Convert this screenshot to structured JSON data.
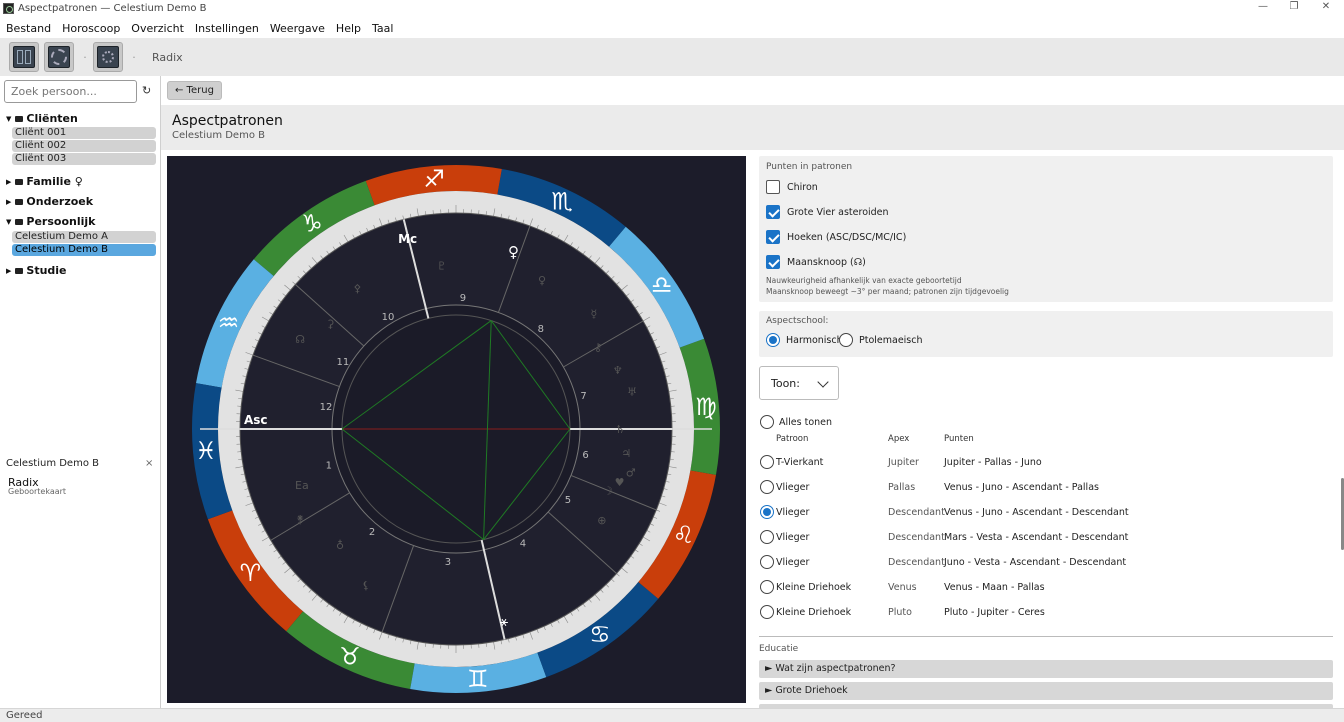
{
  "window": {
    "title": "Aspectpatronen — Celestium Demo B",
    "minimize": "—",
    "maximize": "❐",
    "close": "✕"
  },
  "menu": [
    "Bestand",
    "Horoscoop",
    "Overzicht",
    "Instellingen",
    "Weergave",
    "Help",
    "Taal"
  ],
  "toolbar": {
    "crumb": "Radix",
    "separator": "·"
  },
  "sidebar": {
    "search_placeholder": "Zoek persoon...",
    "refresh_icon": "↻",
    "groups": [
      {
        "label": "Cliënten",
        "items": [
          "Cliënt 001",
          "Cliënt 002",
          "Cliënt 003"
        ]
      },
      {
        "label": "Familie ♀",
        "items": []
      },
      {
        "label": "Onderzoek",
        "items": []
      },
      {
        "label": "Persoonlijk",
        "items": [
          "Celestium Demo A",
          "Celestium Demo B"
        ]
      },
      {
        "label": "Studie",
        "items": []
      }
    ],
    "selected_item": "Celestium Demo B"
  },
  "session": {
    "header": "Celestium Demo B",
    "close": "×",
    "item_title": "Radix",
    "item_subtitle": "Geboortekaart"
  },
  "main": {
    "back_label": "← Terug",
    "title": "Aspectpatronen",
    "subtitle": "Celestium Demo B"
  },
  "points_panel": {
    "title": "Punten in patronen",
    "options": [
      {
        "label": "Chiron",
        "checked": false
      },
      {
        "label": "Grote Vier asteroiden",
        "checked": true
      },
      {
        "label": "Hoeken (ASC/DSC/MC/IC)",
        "checked": true
      },
      {
        "label": "Maansknoop (☊)",
        "checked": true
      }
    ],
    "note1": "Nauwkeurigheid afhankelijk van exacte geboortetijd",
    "note2": "Maansknoop beweegt ~3° per maand; patronen zijn tijdgevoelig"
  },
  "aspect_school": {
    "title": "Aspectschool:",
    "options": [
      "Harmonisch",
      "Ptolemaeisch"
    ],
    "selected": "Harmonisch"
  },
  "toon": {
    "label": "Toon:"
  },
  "patterns": {
    "show_all_label": "Alles tonen",
    "headers": {
      "pattern": "Patroon",
      "apex": "Apex",
      "points": "Punten"
    },
    "rows": [
      {
        "pattern": "T-Vierkant",
        "apex": "Jupiter",
        "points": "Jupiter - Pallas - Juno",
        "selected": false
      },
      {
        "pattern": "Vlieger",
        "apex": "Pallas",
        "points": "Venus - Juno - Ascendant - Pallas",
        "selected": false
      },
      {
        "pattern": "Vlieger",
        "apex": "Descendant",
        "points": "Venus - Juno - Ascendant - Descendant",
        "selected": true
      },
      {
        "pattern": "Vlieger",
        "apex": "Descendant",
        "points": "Mars - Vesta - Ascendant - Descendant",
        "selected": false
      },
      {
        "pattern": "Vlieger",
        "apex": "Descendant",
        "points": "Juno - Vesta - Ascendant - Descendant",
        "selected": false
      },
      {
        "pattern": "Kleine Driehoek",
        "apex": "Venus",
        "points": "Venus - Maan - Pallas",
        "selected": false
      },
      {
        "pattern": "Kleine Driehoek",
        "apex": "Pluto",
        "points": "Pluto - Jupiter - Ceres",
        "selected": false
      }
    ]
  },
  "education": {
    "title": "Educatie",
    "items": [
      "► Wat zijn aspectpatronen?",
      "► Grote Driehoek"
    ]
  },
  "status": "Gereed",
  "chart": {
    "colors": {
      "background": "#1c1c2a",
      "fire": "#c93e0b",
      "earth": "#3a8a35",
      "air": "#5ab0e2",
      "water": "#0b4a86",
      "ring": "#e2e2e2",
      "pattern_line": "#1f7a24",
      "axis_line": "#8a1c1c"
    },
    "signs": [
      {
        "glyph": "♈",
        "element": "fire"
      },
      {
        "glyph": "♉",
        "element": "earth"
      },
      {
        "glyph": "♊",
        "element": "air"
      },
      {
        "glyph": "♋",
        "element": "water"
      },
      {
        "glyph": "♌",
        "element": "fire"
      },
      {
        "glyph": "♍",
        "element": "earth"
      },
      {
        "glyph": "♎",
        "element": "air"
      },
      {
        "glyph": "♏",
        "element": "water"
      },
      {
        "glyph": "♐",
        "element": "fire"
      },
      {
        "glyph": "♑",
        "element": "earth"
      },
      {
        "glyph": "♒",
        "element": "air"
      },
      {
        "glyph": "♓",
        "element": "water"
      }
    ],
    "house_numbers": [
      "1",
      "2",
      "3",
      "4",
      "5",
      "6",
      "7",
      "8",
      "9",
      "10",
      "11",
      "12"
    ],
    "asc_label": "Asc",
    "mc_label": "Mc",
    "dim_glyphs": [
      "♇",
      "♀",
      "☿",
      "⚷",
      "♆",
      "♅",
      "♄",
      "♃",
      "♂",
      "☽",
      "⊕",
      "☊",
      "⚳",
      "⚴",
      "⚵",
      "Ea",
      "♥",
      "⚸",
      "♁"
    ],
    "bright_glyphs": [
      "♀",
      "⚹"
    ]
  }
}
